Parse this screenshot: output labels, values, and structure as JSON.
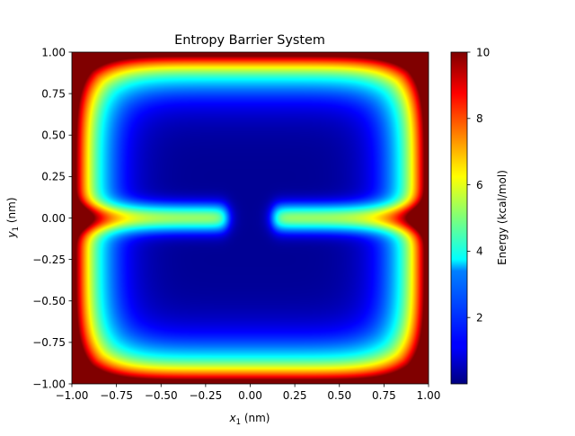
{
  "chart_data": {
    "type": "heatmap",
    "title": "Entropy Barrier System",
    "xlabel": {
      "var": "x",
      "sub": "1",
      "unit": " (nm)"
    },
    "ylabel": {
      "var": "y",
      "sub": "1",
      "unit": " (nm)"
    },
    "xlim": [
      -1.0,
      1.0
    ],
    "ylim": [
      -1.0,
      1.0
    ],
    "x_ticks": [
      -1.0,
      -0.75,
      -0.5,
      -0.25,
      0.0,
      0.25,
      0.5,
      0.75,
      1.0
    ],
    "x_tick_labels": [
      "−1.00",
      "−0.75",
      "−0.50",
      "−0.25",
      "0.00",
      "0.25",
      "0.50",
      "0.75",
      "1.00"
    ],
    "y_ticks": [
      1.0,
      0.75,
      0.5,
      0.25,
      0.0,
      -0.25,
      -0.5,
      -0.75,
      -1.0
    ],
    "y_tick_labels": [
      "1.00",
      "0.75",
      "0.50",
      "0.25",
      "0.00",
      "−0.25",
      "−0.50",
      "−0.75",
      "−1.00"
    ],
    "colorbar": {
      "label": "Energy (kcal/mol)",
      "range": [
        0,
        10
      ],
      "ticks": [
        2,
        4,
        6,
        8,
        10
      ],
      "tick_labels": [
        "2",
        "4",
        "6",
        "8",
        "10"
      ],
      "colormap": "jet"
    },
    "grid": false
  }
}
